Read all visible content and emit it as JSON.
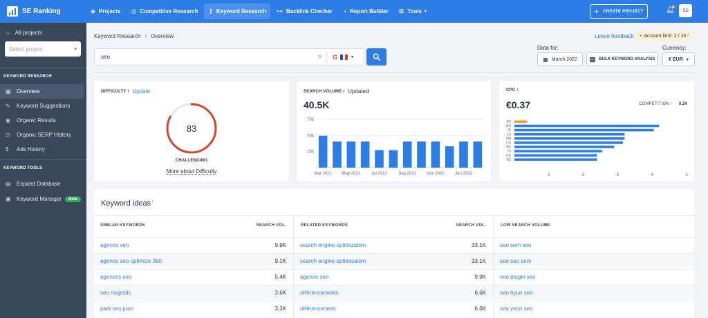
{
  "app": {
    "name": "SE Ranking",
    "nav": [
      {
        "label": "Projects",
        "icon": "layers-icon",
        "glyph": "◈"
      },
      {
        "label": "Competitive Research",
        "icon": "target-icon",
        "glyph": "◎"
      },
      {
        "label": "Keyword Research",
        "icon": "key-icon",
        "glyph": "⚷"
      },
      {
        "label": "Backlink Checker",
        "icon": "link-icon",
        "glyph": "⊶"
      },
      {
        "label": "Report Builder",
        "icon": "clock-report-icon",
        "glyph": "◔"
      },
      {
        "label": "Tools",
        "icon": "grid-icon",
        "glyph": "⊞"
      }
    ],
    "create_project": "CREATE PROJECT",
    "avatar": "SD"
  },
  "sidebar": {
    "all_projects": "All projects",
    "select_project": "Select project",
    "section1": "KEYWORD RESEARCH",
    "items1": [
      {
        "label": "Overview",
        "glyph": "▦"
      },
      {
        "label": "Keyword Suggestions",
        "glyph": "✎"
      },
      {
        "label": "Organic Results",
        "glyph": "◉"
      },
      {
        "label": "Organic SERP History",
        "glyph": "◷"
      },
      {
        "label": "Ads History",
        "glyph": "$"
      }
    ],
    "section2": "KEYWORD TOOLS",
    "items2": [
      {
        "label": "Expand Database",
        "glyph": "▤"
      },
      {
        "label": "Keyword Manager",
        "glyph": "▣",
        "badge": "Beta"
      }
    ]
  },
  "header": {
    "breadcrumb": [
      "Keyword Research",
      "Overview"
    ],
    "leave_feedback": "Leave feedback",
    "account_limit": "Account limit: 2 / 10",
    "search_value": "seo",
    "engine_letter": "G",
    "data_for_label": "Data for:",
    "data_for_value": "March 2022",
    "bulk_label": "BULK KEYWORD ANALYSIS",
    "currency_label": "Currency:",
    "currency_value": "€ EUR"
  },
  "difficulty": {
    "title": "DIFFICULTY",
    "update": "Update",
    "value": 83,
    "max": 100,
    "level": "CHALLENGING",
    "more": "More about Difficulty",
    "color": "#d0462a"
  },
  "volume": {
    "title": "SEARCH VOLUME",
    "status": "Updated",
    "value": "40.5K"
  },
  "cpc": {
    "title": "CPC",
    "value": "€0.37",
    "competition_label": "COMPETITION",
    "competition_value": "0.24"
  },
  "chart_data": [
    {
      "type": "bar",
      "name": "search-volume",
      "categories": [
        "Mar 2021",
        "Apr 2021",
        "May 2021",
        "Jun 2021",
        "Jul 2021",
        "Aug 2021",
        "Sep 2021",
        "Oct 2021",
        "Nov 2021",
        "Dec 2021",
        "Jan 2022",
        "Feb 2022"
      ],
      "values": [
        49500,
        40500,
        40500,
        40500,
        27100,
        27100,
        40500,
        40500,
        40500,
        33100,
        40500,
        40500
      ],
      "tick_labels": [
        "Mar 2021",
        "May 2021",
        "Jul 2021",
        "Sep 2021",
        "Nov 2021",
        "Jan 2022"
      ],
      "y_ticks": [
        {
          "value": 25000,
          "label": "25k"
        },
        {
          "value": 50000,
          "label": "50k"
        },
        {
          "value": 75000,
          "label": "75k"
        }
      ],
      "ylim": [
        0,
        75000
      ],
      "color": "#2d7de6",
      "grid": true
    },
    {
      "type": "bar",
      "orientation": "horizontal",
      "name": "cpc-by-country",
      "categories": [
        "FR",
        "AU",
        "IE",
        "LU",
        "SM",
        "US",
        "SG",
        "IS",
        "UK",
        "NZ"
      ],
      "values": [
        0.37,
        4.2,
        4.05,
        3.2,
        3.2,
        3.15,
        2.9,
        2.55,
        2.4,
        2.4
      ],
      "highlight_index": 0,
      "highlight_color": "#f39c1f",
      "color": "#2d7de6",
      "x_ticks": [
        1,
        2,
        3,
        4,
        5
      ],
      "xlim": [
        0,
        5
      ]
    }
  ],
  "keyword_ideas": {
    "title": "Keyword ideas",
    "similar": {
      "header": "SIMILAR KEYWORDS",
      "vol_header": "SEARCH VOL.",
      "rows": [
        {
          "kw": "agence seo",
          "vol": "9.9K"
        },
        {
          "kw": "agence seo optimize 360",
          "vol": "9.1K"
        },
        {
          "kw": "agences seo",
          "vol": "5.4K"
        },
        {
          "kw": "seo majestic",
          "vol": "3.6K"
        },
        {
          "kw": "park seo joon",
          "vol": "3.3K"
        }
      ]
    },
    "related": {
      "header": "RELATED KEYWORDS",
      "vol_header": "SEARCH VOL.",
      "rows": [
        {
          "kw": "search engine optimization",
          "vol": "33.1K"
        },
        {
          "kw": "search engine optimisation",
          "vol": "33.1K"
        },
        {
          "kw": "agence seo",
          "vol": "9.9K"
        },
        {
          "kw": "référencements",
          "vol": "6.6K"
        },
        {
          "kw": "référencement",
          "vol": "6.6K"
        }
      ]
    },
    "low": {
      "header": "LOW SEARCH VOLUME",
      "rows": [
        {
          "kw": "seo sem seo"
        },
        {
          "kw": "seo seo sem"
        },
        {
          "kw": "seo plugin seo"
        },
        {
          "kw": "seo hyun seo"
        },
        {
          "kw": "seo yeon seo"
        }
      ]
    }
  }
}
